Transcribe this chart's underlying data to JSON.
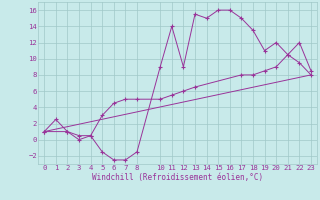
{
  "xlabel": "Windchill (Refroidissement éolien,°C)",
  "background_color": "#c8eaea",
  "grid_color": "#a0c8c8",
  "line_color": "#993399",
  "xlim": [
    -0.5,
    23.5
  ],
  "ylim": [
    -3,
    17
  ],
  "xticks": [
    0,
    1,
    2,
    3,
    4,
    5,
    6,
    7,
    8,
    10,
    11,
    12,
    13,
    14,
    15,
    16,
    17,
    18,
    19,
    20,
    21,
    22,
    23
  ],
  "yticks": [
    -2,
    0,
    2,
    4,
    6,
    8,
    10,
    12,
    14,
    16
  ],
  "curve1_x": [
    0,
    1,
    2,
    3,
    4,
    5,
    6,
    7,
    8,
    10,
    11,
    12,
    13,
    14,
    15,
    16,
    17,
    18,
    19,
    20,
    21,
    22,
    23
  ],
  "curve1_y": [
    1,
    2.5,
    1,
    0,
    0.5,
    -1.5,
    -2.5,
    -2.5,
    -1.5,
    9,
    14,
    9,
    15.5,
    15,
    16,
    16,
    15,
    13.5,
    11,
    12,
    10.5,
    9.5,
    8
  ],
  "curve2_x": [
    0,
    2,
    3,
    4,
    5,
    6,
    7,
    8,
    10,
    11,
    12,
    13,
    17,
    18,
    19,
    20,
    21,
    22,
    23
  ],
  "curve2_y": [
    1,
    1,
    0.5,
    0.5,
    3,
    4.5,
    5,
    5,
    5,
    5.5,
    6,
    6.5,
    8,
    8,
    8.5,
    9,
    10.5,
    12,
    8.5
  ],
  "curve3_x": [
    0,
    23
  ],
  "curve3_y": [
    1,
    8
  ]
}
